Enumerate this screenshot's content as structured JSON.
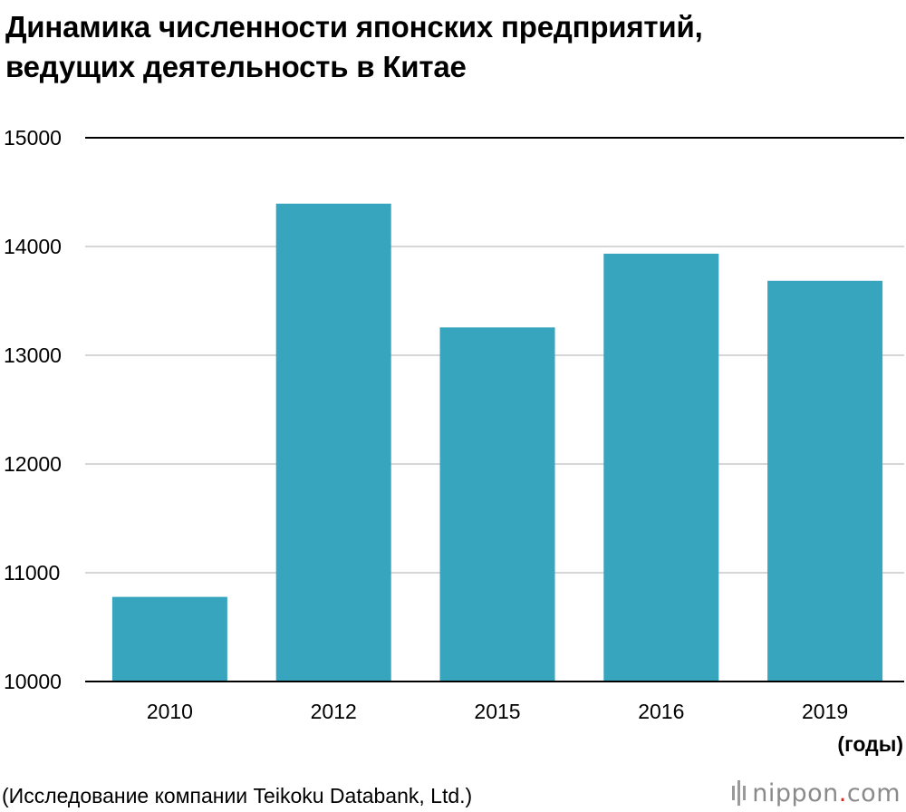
{
  "title_line1": "Динамика численности японских предприятий,",
  "title_line2": "ведущих деятельность в Китае",
  "chart_data": {
    "type": "bar",
    "title": "Динамика численности японских предприятий, ведущих деятельность в Китае",
    "categories": [
      "2010",
      "2012",
      "2015",
      "2016",
      "2019"
    ],
    "values": [
      10778,
      14394,
      13256,
      13934,
      13685
    ],
    "y_ticks": [
      "10000",
      "11000",
      "12000",
      "13000",
      "14000",
      "15000"
    ],
    "ylim": [
      10000,
      15000
    ],
    "x_unit_label": "(годы)",
    "grid": true,
    "bar_color": "#38a5bf"
  },
  "source": "(Исследование компании Teikoku Databank, Ltd.)",
  "logo": {
    "name": "nippon",
    "dot": ".",
    "suffix": "com",
    "icon": "nippon-bars-icon"
  }
}
